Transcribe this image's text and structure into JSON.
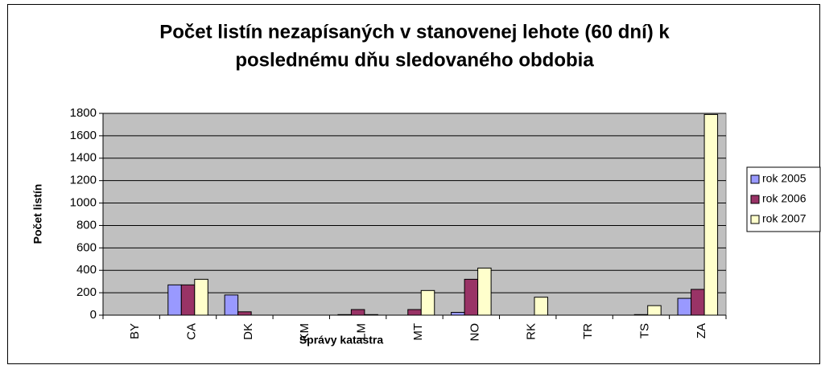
{
  "chart_data": {
    "type": "bar",
    "title": [
      "Počet listín nezapísaných v stanovenej lehote (60 dní) k",
      "poslednému dňu sledovaného obdobia"
    ],
    "xlabel": "Správy katastra",
    "ylabel": "Počet listín",
    "categories": [
      "BY",
      "CA",
      "DK",
      "KM",
      "LM",
      "MT",
      "NO",
      "RK",
      "TR",
      "TS",
      "ZA"
    ],
    "series": [
      {
        "name": "rok 2005",
        "color": "#9999FF",
        "values": [
          0,
          270,
          180,
          0,
          5,
          0,
          25,
          0,
          0,
          0,
          150
        ]
      },
      {
        "name": "rok 2006",
        "color": "#993366",
        "values": [
          0,
          270,
          30,
          0,
          50,
          50,
          320,
          0,
          0,
          5,
          230
        ]
      },
      {
        "name": "rok 2007",
        "color": "#FFFFCC",
        "values": [
          0,
          320,
          0,
          0,
          5,
          220,
          420,
          160,
          0,
          85,
          1790
        ]
      }
    ],
    "ylim": [
      0,
      1800
    ],
    "yticks": [
      0,
      200,
      400,
      600,
      800,
      1000,
      1200,
      1400,
      1600,
      1800
    ],
    "grid": true,
    "legend": "right",
    "plot_background": "#C0C0C0"
  }
}
